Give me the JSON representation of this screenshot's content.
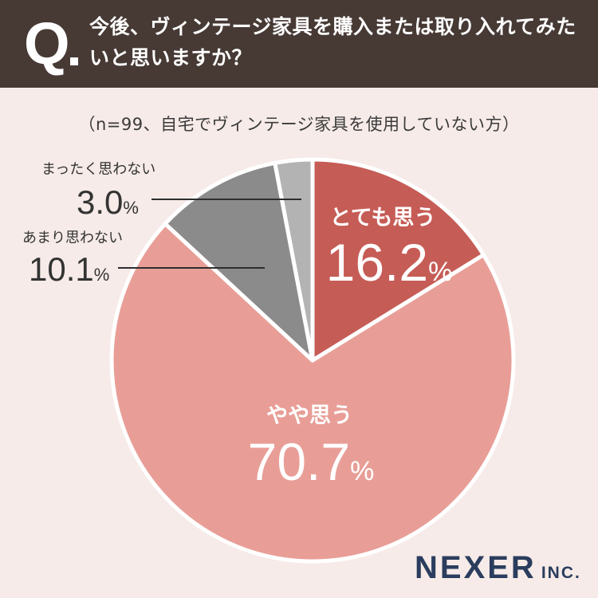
{
  "header": {
    "q_mark": "Q",
    "question": "今後、ヴィンテージ家具を購入または取り入れてみたいと思いますか？"
  },
  "subtitle": "（n=99、自宅でヴィンテージ家具を使用していない方）",
  "chart_data": {
    "type": "pie",
    "title": "今後、ヴィンテージ家具を購入または取り入れてみたいと思いますか？",
    "subtitle": "（n=99、自宅でヴィンテージ家具を使用していない方）",
    "unit": "%",
    "slices": [
      {
        "label": "とても思う",
        "value": 16.2,
        "value_text": "16.2",
        "color": "#c65c56"
      },
      {
        "label": "やや思う",
        "value": 70.7,
        "value_text": "70.7",
        "color": "#e89e97"
      },
      {
        "label": "あまり思わない",
        "value": 10.1,
        "value_text": "10.1",
        "color": "#8b8b8b"
      },
      {
        "label": "まったく思わない",
        "value": 3.0,
        "value_text": "3.0",
        "color": "#b3b3b3"
      }
    ]
  },
  "brand": {
    "name": "NEXER",
    "suffix": "INC."
  },
  "colors": {
    "header_bg": "#473a35",
    "page_bg": "#f6ebe8",
    "brand": "#2a3d5e"
  }
}
